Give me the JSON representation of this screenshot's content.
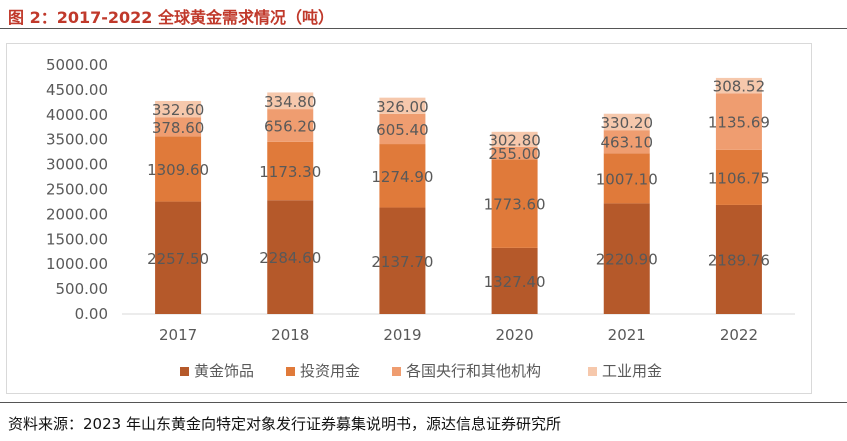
{
  "title": "图 2：2017-2022 全球黄金需求情况（吨）",
  "source": "资料来源：2023 年山东黄金向特定对象发行证券募集说明书，源达信息证券研究所",
  "chart_data": {
    "type": "bar",
    "stacked": true,
    "categories": [
      "2017",
      "2018",
      "2019",
      "2020",
      "2021",
      "2022"
    ],
    "series": [
      {
        "name": "黄金饰品",
        "color": "#b5592a",
        "values": [
          2257.5,
          2284.6,
          2137.7,
          1327.4,
          2220.9,
          2189.76
        ],
        "labels": [
          "2257.50",
          "2284.60",
          "2137.70",
          "1327.40",
          "2220.90",
          "2189.76"
        ]
      },
      {
        "name": "投资用金",
        "color": "#e07a3a",
        "values": [
          1309.6,
          1173.3,
          1274.9,
          1773.6,
          1007.1,
          1106.75
        ],
        "labels": [
          "1309.60",
          "1173.30",
          "1274.90",
          "1773.60",
          "1007.10",
          "1106.75"
        ]
      },
      {
        "name": "各国央行和其他机构",
        "color": "#ef9d70",
        "values": [
          378.6,
          656.2,
          605.4,
          255.0,
          463.1,
          1135.69
        ],
        "labels": [
          "378.60",
          "656.20",
          "605.40",
          "255.00",
          "463.10",
          "1135.69"
        ]
      },
      {
        "name": "工业用金",
        "color": "#f6c8ac",
        "values": [
          332.6,
          334.8,
          326.0,
          302.8,
          330.2,
          308.52
        ],
        "labels": [
          "332.60",
          "334.80",
          "326.00",
          "302.80",
          "330.20",
          "308.52"
        ]
      }
    ],
    "yticks": [
      "0.00",
      "500.00",
      "1000.00",
      "1500.00",
      "2000.00",
      "2500.00",
      "3000.00",
      "3500.00",
      "4000.00",
      "4500.00",
      "5000.00"
    ],
    "ylim": [
      0,
      5000
    ],
    "grid": false,
    "legend_position": "bottom",
    "label_color": "#595959",
    "tick_color": "#595959"
  }
}
